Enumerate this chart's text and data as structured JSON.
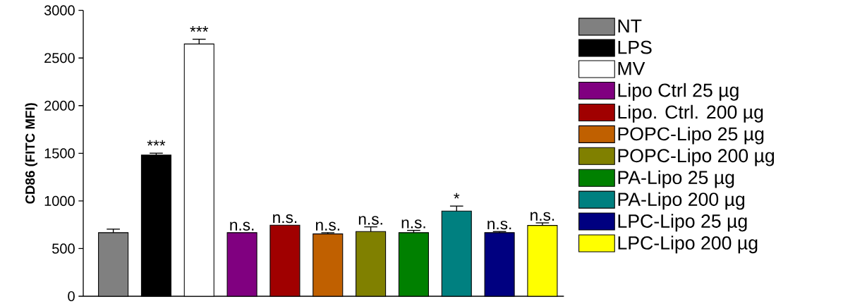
{
  "chart_data": {
    "type": "bar",
    "ylabel": "CD86 (FITC MFI)",
    "categories": [
      null,
      null,
      null,
      null,
      null,
      null,
      null,
      null,
      null,
      null,
      null
    ],
    "ylim": [
      0,
      3000
    ],
    "yticks": [
      0,
      500,
      1000,
      1500,
      2000,
      2500,
      3000
    ],
    "legend": "right",
    "series": [
      {
        "name": "NT",
        "color": "#808080",
        "values": [
          667,
          null,
          null,
          null,
          null,
          null,
          null,
          null,
          null,
          null,
          null
        ],
        "errors": [
          37,
          null,
          null,
          null,
          null,
          null,
          null,
          null,
          null,
          null,
          null
        ]
      },
      {
        "name": "LPS",
        "color": "#000000",
        "values": [
          null,
          1481,
          null,
          null,
          null,
          null,
          null,
          null,
          null,
          null,
          null
        ],
        "errors": [
          null,
          20,
          null,
          null,
          null,
          null,
          null,
          null,
          null,
          null,
          null
        ]
      },
      {
        "name": "MV",
        "color": "#ffffff",
        "values": [
          null,
          null,
          2647,
          null,
          null,
          null,
          null,
          null,
          null,
          null,
          null
        ],
        "errors": [
          null,
          null,
          50,
          null,
          null,
          null,
          null,
          null,
          null,
          null,
          null
        ]
      },
      {
        "name": "Lipo Ctrl 25 µg",
        "color": "#800080",
        "values": [
          null,
          null,
          null,
          667,
          null,
          null,
          null,
          null,
          null,
          null,
          null
        ],
        "errors": [
          null,
          null,
          null,
          null,
          null,
          null,
          null,
          null,
          null,
          null,
          null
        ]
      },
      {
        "name": "Lipo. Ctrl. 200 µg",
        "color": "#a00000",
        "values": [
          null,
          null,
          null,
          null,
          746,
          null,
          null,
          null,
          null,
          null,
          null
        ],
        "errors": [
          null,
          null,
          null,
          null,
          null,
          null,
          null,
          null,
          null,
          null,
          null
        ]
      },
      {
        "name": "POPC-Lipo 25 µg",
        "color": "#c06000",
        "values": [
          null,
          null,
          null,
          null,
          null,
          654,
          null,
          null,
          null,
          null,
          null
        ],
        "errors": [
          null,
          null,
          null,
          null,
          null,
          13,
          null,
          null,
          null,
          null,
          null
        ]
      },
      {
        "name": "POPC-Lipo 200 µg",
        "color": "#808000",
        "values": [
          null,
          null,
          null,
          null,
          null,
          null,
          679,
          null,
          null,
          null,
          null
        ],
        "errors": [
          null,
          null,
          null,
          null,
          null,
          null,
          49,
          null,
          null,
          null,
          null
        ]
      },
      {
        "name": "PA-Lipo 25 µg",
        "color": "#008000",
        "values": [
          null,
          null,
          null,
          null,
          null,
          null,
          null,
          667,
          null,
          null,
          null
        ],
        "errors": [
          null,
          null,
          null,
          null,
          null,
          null,
          null,
          24,
          null,
          null,
          null
        ]
      },
      {
        "name": "PA-Lipo 200 µg",
        "color": "#008080",
        "values": [
          null,
          null,
          null,
          null,
          null,
          null,
          null,
          null,
          894,
          null,
          null
        ],
        "errors": [
          null,
          null,
          null,
          null,
          null,
          null,
          null,
          null,
          52,
          null,
          null
        ]
      },
      {
        "name": "LPC-Lipo 25 µg",
        "color": "#000080",
        "values": [
          null,
          null,
          null,
          null,
          null,
          null,
          null,
          null,
          null,
          667,
          null
        ],
        "errors": [
          null,
          null,
          null,
          null,
          null,
          null,
          null,
          null,
          null,
          12,
          null
        ]
      },
      {
        "name": "LPC-Lipo 200 µg",
        "color": "#ffff00",
        "values": [
          null,
          null,
          null,
          null,
          null,
          null,
          null,
          null,
          null,
          null,
          743
        ],
        "errors": [
          null,
          null,
          null,
          null,
          null,
          null,
          null,
          null,
          null,
          null,
          27
        ]
      }
    ],
    "annotations": [
      {
        "text": "***",
        "y": 1501
      },
      {
        "text": "***",
        "y": 2697
      },
      {
        "text": "n.s.",
        "y": 667
      },
      {
        "text": "n.s.",
        "y": 746
      },
      {
        "text": "n.s.",
        "y": 667
      },
      {
        "text": "n.s.",
        "y": 728
      },
      {
        "text": "n.s.",
        "y": 691
      },
      {
        "text": "*",
        "y": 946
      },
      {
        "text": "n.s.",
        "y": 679
      },
      {
        "text": "n.s.",
        "y": 770
      }
    ]
  }
}
